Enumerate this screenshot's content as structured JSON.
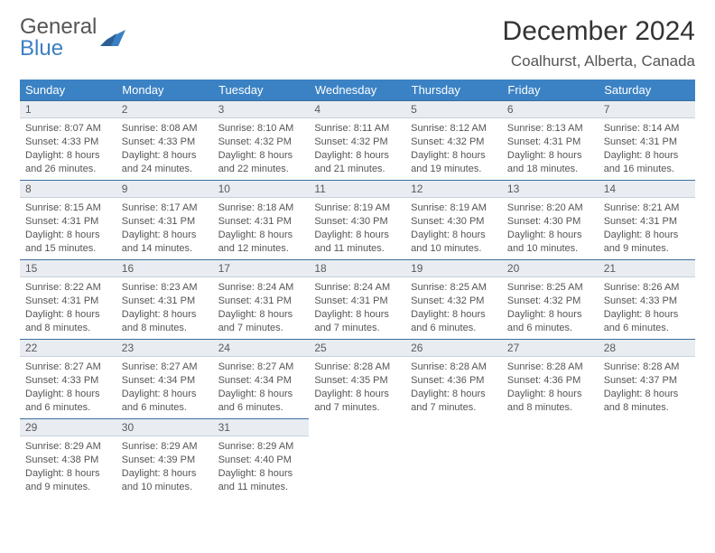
{
  "logo": {
    "general": "General",
    "blue": "Blue"
  },
  "title": "December 2024",
  "location": "Coalhurst, Alberta, Canada",
  "colors": {
    "header_bg": "#3b82c4",
    "header_text": "#ffffff",
    "daynum_bg": "#e9edf1",
    "daynum_border_top": "#3b6fa0",
    "body_text": "#555555",
    "logo_blue": "#3b7fc4"
  },
  "weekdays": [
    "Sunday",
    "Monday",
    "Tuesday",
    "Wednesday",
    "Thursday",
    "Friday",
    "Saturday"
  ],
  "start_weekday": 0,
  "days": [
    {
      "n": 1,
      "sunrise": "8:07 AM",
      "sunset": "4:33 PM",
      "daylight": "8 hours and 26 minutes."
    },
    {
      "n": 2,
      "sunrise": "8:08 AM",
      "sunset": "4:33 PM",
      "daylight": "8 hours and 24 minutes."
    },
    {
      "n": 3,
      "sunrise": "8:10 AM",
      "sunset": "4:32 PM",
      "daylight": "8 hours and 22 minutes."
    },
    {
      "n": 4,
      "sunrise": "8:11 AM",
      "sunset": "4:32 PM",
      "daylight": "8 hours and 21 minutes."
    },
    {
      "n": 5,
      "sunrise": "8:12 AM",
      "sunset": "4:32 PM",
      "daylight": "8 hours and 19 minutes."
    },
    {
      "n": 6,
      "sunrise": "8:13 AM",
      "sunset": "4:31 PM",
      "daylight": "8 hours and 18 minutes."
    },
    {
      "n": 7,
      "sunrise": "8:14 AM",
      "sunset": "4:31 PM",
      "daylight": "8 hours and 16 minutes."
    },
    {
      "n": 8,
      "sunrise": "8:15 AM",
      "sunset": "4:31 PM",
      "daylight": "8 hours and 15 minutes."
    },
    {
      "n": 9,
      "sunrise": "8:17 AM",
      "sunset": "4:31 PM",
      "daylight": "8 hours and 14 minutes."
    },
    {
      "n": 10,
      "sunrise": "8:18 AM",
      "sunset": "4:31 PM",
      "daylight": "8 hours and 12 minutes."
    },
    {
      "n": 11,
      "sunrise": "8:19 AM",
      "sunset": "4:30 PM",
      "daylight": "8 hours and 11 minutes."
    },
    {
      "n": 12,
      "sunrise": "8:19 AM",
      "sunset": "4:30 PM",
      "daylight": "8 hours and 10 minutes."
    },
    {
      "n": 13,
      "sunrise": "8:20 AM",
      "sunset": "4:30 PM",
      "daylight": "8 hours and 10 minutes."
    },
    {
      "n": 14,
      "sunrise": "8:21 AM",
      "sunset": "4:31 PM",
      "daylight": "8 hours and 9 minutes."
    },
    {
      "n": 15,
      "sunrise": "8:22 AM",
      "sunset": "4:31 PM",
      "daylight": "8 hours and 8 minutes."
    },
    {
      "n": 16,
      "sunrise": "8:23 AM",
      "sunset": "4:31 PM",
      "daylight": "8 hours and 8 minutes."
    },
    {
      "n": 17,
      "sunrise": "8:24 AM",
      "sunset": "4:31 PM",
      "daylight": "8 hours and 7 minutes."
    },
    {
      "n": 18,
      "sunrise": "8:24 AM",
      "sunset": "4:31 PM",
      "daylight": "8 hours and 7 minutes."
    },
    {
      "n": 19,
      "sunrise": "8:25 AM",
      "sunset": "4:32 PM",
      "daylight": "8 hours and 6 minutes."
    },
    {
      "n": 20,
      "sunrise": "8:25 AM",
      "sunset": "4:32 PM",
      "daylight": "8 hours and 6 minutes."
    },
    {
      "n": 21,
      "sunrise": "8:26 AM",
      "sunset": "4:33 PM",
      "daylight": "8 hours and 6 minutes."
    },
    {
      "n": 22,
      "sunrise": "8:27 AM",
      "sunset": "4:33 PM",
      "daylight": "8 hours and 6 minutes."
    },
    {
      "n": 23,
      "sunrise": "8:27 AM",
      "sunset": "4:34 PM",
      "daylight": "8 hours and 6 minutes."
    },
    {
      "n": 24,
      "sunrise": "8:27 AM",
      "sunset": "4:34 PM",
      "daylight": "8 hours and 6 minutes."
    },
    {
      "n": 25,
      "sunrise": "8:28 AM",
      "sunset": "4:35 PM",
      "daylight": "8 hours and 7 minutes."
    },
    {
      "n": 26,
      "sunrise": "8:28 AM",
      "sunset": "4:36 PM",
      "daylight": "8 hours and 7 minutes."
    },
    {
      "n": 27,
      "sunrise": "8:28 AM",
      "sunset": "4:36 PM",
      "daylight": "8 hours and 8 minutes."
    },
    {
      "n": 28,
      "sunrise": "8:28 AM",
      "sunset": "4:37 PM",
      "daylight": "8 hours and 8 minutes."
    },
    {
      "n": 29,
      "sunrise": "8:29 AM",
      "sunset": "4:38 PM",
      "daylight": "8 hours and 9 minutes."
    },
    {
      "n": 30,
      "sunrise": "8:29 AM",
      "sunset": "4:39 PM",
      "daylight": "8 hours and 10 minutes."
    },
    {
      "n": 31,
      "sunrise": "8:29 AM",
      "sunset": "4:40 PM",
      "daylight": "8 hours and 11 minutes."
    }
  ],
  "labels": {
    "sunrise": "Sunrise: ",
    "sunset": "Sunset: ",
    "daylight": "Daylight: "
  }
}
